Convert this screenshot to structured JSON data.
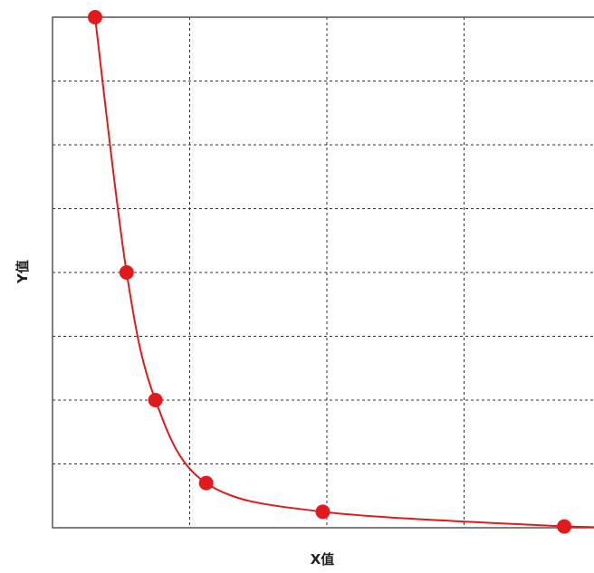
{
  "chart_data": {
    "type": "line",
    "title": "",
    "xlabel": "X值",
    "ylabel": "Y值",
    "xlim": [
      0,
      4
    ],
    "ylim": [
      0,
      8
    ],
    "grid": true,
    "x_gridlines": [
      1,
      2,
      3
    ],
    "y_gridlines": [
      1,
      2,
      3,
      4,
      5,
      6,
      7
    ],
    "tick_labels_shown": false,
    "curve": "smooth",
    "series": [
      {
        "points": [
          {
            "x": 0.31,
            "y": 8.0
          },
          {
            "x": 0.54,
            "y": 4.0
          },
          {
            "x": 0.75,
            "y": 2.0
          },
          {
            "x": 1.12,
            "y": 0.7
          },
          {
            "x": 1.97,
            "y": 0.25
          },
          {
            "x": 3.73,
            "y": 0.02
          }
        ],
        "color": "#e31a1c"
      }
    ]
  },
  "colors": {
    "frame": "#555555",
    "grid": "#333333",
    "series": "#e31a1c"
  }
}
